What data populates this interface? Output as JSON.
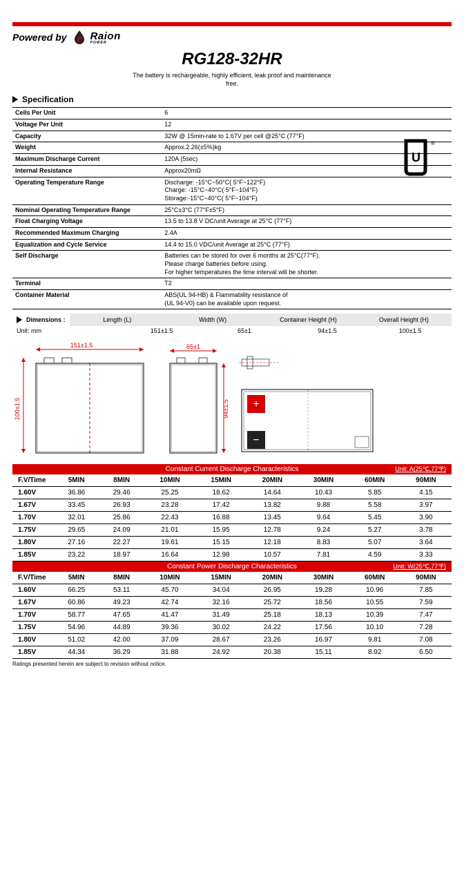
{
  "header": {
    "powered_by": "Powered by",
    "logo_brand": "Raion",
    "logo_sub": "POWER",
    "title": "RG128-32HR",
    "subtitle": "The battery is rechargeable, highly efficient, leak proof and maintenance free."
  },
  "colors": {
    "red": "#d60000",
    "gray_band": "#e8e8e8",
    "white": "#ffffff",
    "black": "#000000"
  },
  "spec_title": "Specification",
  "specs": [
    {
      "label": "Cells Per Unit",
      "value": "6"
    },
    {
      "label": "Voltage Per Unit",
      "value": "12"
    },
    {
      "label": "Capacity",
      "value": "32W @ 15min-rate to 1.67V per cell @25°C (77°F)"
    },
    {
      "label": "Weight",
      "value": "Approx.2.26(±5%)kg"
    },
    {
      "label": "Maximum Discharge Current",
      "value": "120A (5sec)"
    },
    {
      "label": "Internal Resistance",
      "value": "Approx20mΩ"
    },
    {
      "label": "Operating Temperature Range",
      "value": "Discharge: -15°C~50°C( 5°F~122°F)\nCharge: -15°C~40°C( 5°F~104°F)\nStorage:-15°C~40°C( 5°F~104°F)"
    },
    {
      "label": "Nominal Operating Temperature Range",
      "value": "25°C±3°C (77°F±5°F)"
    },
    {
      "label": "Float Charging Voltage",
      "value": "13.5 to 13.8 V DC/unit Average at 25°C (77°F)"
    },
    {
      "label": "Recommended Maximum Charging",
      "value": "2.4A"
    },
    {
      "label": "Equalization and Cycle Service",
      "value": "14.4 to 15.0 VDC/unit Average at 25°C (77°F)"
    },
    {
      "label": "Self Discharge",
      "value": "Batteries can be stored for over 6 months at 25°C(77°F).\nPlease charge batteries before using.\nFor higher temperatures the time interval will be shorter."
    },
    {
      "label": "Terminal",
      "value": "T2"
    },
    {
      "label": "Container Material",
      "value": "ABS(UL 94-HB) & Flammability resistance of\n(UL 94-V0) can be available upon request."
    }
  ],
  "dimensions": {
    "title": "Dimensions :",
    "unit_label": "Unit: mm",
    "headers": [
      "Length (L)",
      "Width (W)",
      "Container Height (H)",
      "Overall Height (H)"
    ],
    "values": [
      "151±1.5",
      "65±1",
      "94±1.5",
      "100±1.5"
    ]
  },
  "drawings": {
    "front_len": "151±1.5",
    "height": "100±1.5",
    "side_w": "65±1",
    "container_h": "94±1.5"
  },
  "current_table": {
    "title": "Constant Current Discharge Characteristics",
    "unit": "Unit: A(25℃,77℉)",
    "time_head": "F.V/Time",
    "columns": [
      "5MIN",
      "8MIN",
      "10MIN",
      "15MIN",
      "20MIN",
      "30MIN",
      "60MIN",
      "90MIN"
    ],
    "rows": [
      {
        "fv": "1.60V",
        "vals": [
          "36.86",
          "29.46",
          "25.25",
          "18.62",
          "14.64",
          "10.43",
          "5.85",
          "4.15"
        ]
      },
      {
        "fv": "1.67V",
        "vals": [
          "33.45",
          "26.93",
          "23.28",
          "17.42",
          "13.82",
          "9.88",
          "5.58",
          "3.97"
        ]
      },
      {
        "fv": "1.70V",
        "vals": [
          "32.01",
          "25.86",
          "22.43",
          "16.88",
          "13.45",
          "9.64",
          "5.45",
          "3.90"
        ]
      },
      {
        "fv": "1.75V",
        "vals": [
          "29.65",
          "24.09",
          "21.01",
          "15.95",
          "12.78",
          "9.24",
          "5.27",
          "3.78"
        ]
      },
      {
        "fv": "1.80V",
        "vals": [
          "27.16",
          "22.27",
          "19.61",
          "15.15",
          "12.18",
          "8.83",
          "5.07",
          "3.64"
        ]
      },
      {
        "fv": "1.85V",
        "vals": [
          "23.22",
          "18.97",
          "16.64",
          "12.98",
          "10.57",
          "7.81",
          "4.59",
          "3.33"
        ]
      }
    ]
  },
  "power_table": {
    "title": "Constant Power Discharge Characteristics",
    "unit": "Unit: W(25℃,77℉)",
    "time_head": "F.V/Time",
    "columns": [
      "5MIN",
      "8MIN",
      "10MIN",
      "15MIN",
      "20MIN",
      "30MIN",
      "60MIN",
      "90MIN"
    ],
    "rows": [
      {
        "fv": "1.60V",
        "vals": [
          "66.25",
          "53.11",
          "45.70",
          "34.04",
          "26.95",
          "19.28",
          "10.96",
          "7.85"
        ]
      },
      {
        "fv": "1.67V",
        "vals": [
          "60.86",
          "49.23",
          "42.74",
          "32.16",
          "25.72",
          "18.56",
          "10.55",
          "7.59"
        ]
      },
      {
        "fv": "1.70V",
        "vals": [
          "58.77",
          "47.65",
          "41.47",
          "31.49",
          "25.18",
          "18.13",
          "10.39",
          "7.47"
        ]
      },
      {
        "fv": "1.75V",
        "vals": [
          "54.96",
          "44.89",
          "39.36",
          "30.02",
          "24.22",
          "17.56",
          "10.10",
          "7.28"
        ]
      },
      {
        "fv": "1.80V",
        "vals": [
          "51.02",
          "42.00",
          "37.09",
          "28.67",
          "23.26",
          "16.97",
          "9.81",
          "7.08"
        ]
      },
      {
        "fv": "1.85V",
        "vals": [
          "44.34",
          "36.29",
          "31.88",
          "24.92",
          "20.38",
          "15.11",
          "8.92",
          "6.50"
        ]
      }
    ]
  },
  "footnote": "Ratings presented herein are subject to revision without notice."
}
